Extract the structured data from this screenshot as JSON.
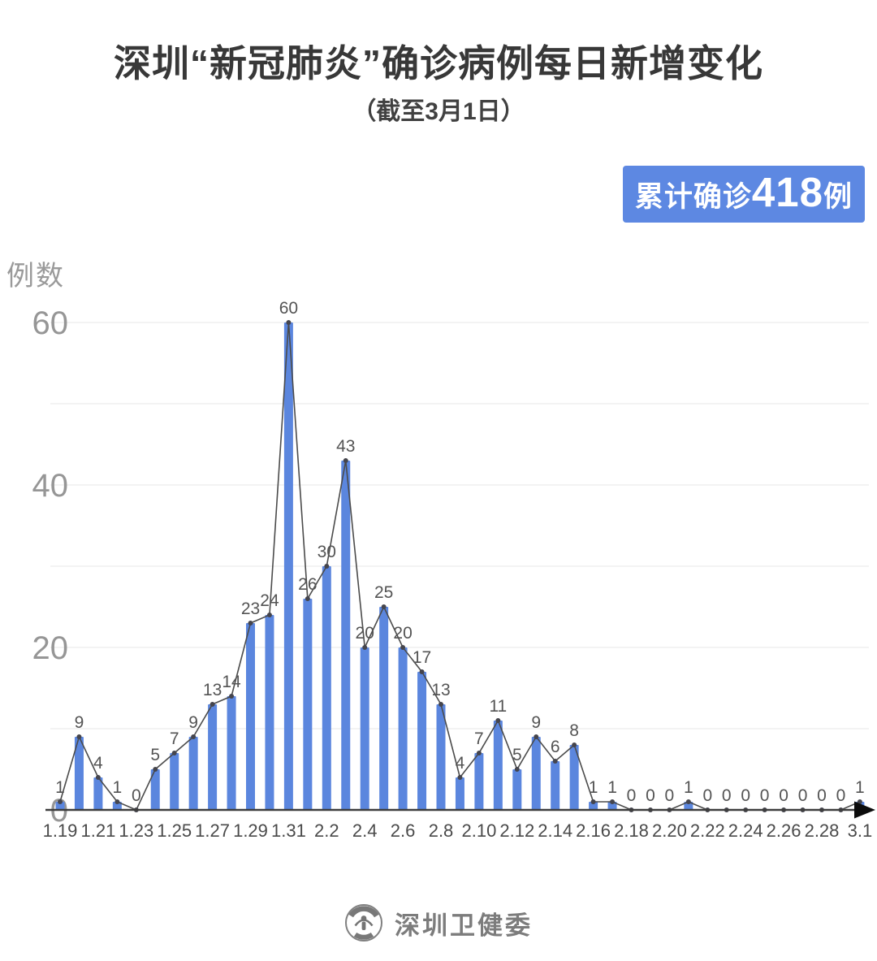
{
  "page": {
    "title": "深圳“新冠肺炎”确诊病例每日新增变化",
    "subtitle": "（截至3月1日）"
  },
  "badge": {
    "prefix": "累计确诊",
    "count": "418",
    "suffix": "例"
  },
  "footer": {
    "org_name": "深圳卫健委",
    "logo": "shenzhen-health-commission-seal-icon"
  },
  "colors": {
    "bar": "#5b86de",
    "badge_bg": "#5d88e2",
    "line": "#4b4b4b",
    "marker": "#45454d",
    "grid": "#ececec",
    "axis": "#3d3d3d",
    "value_label": "#545454",
    "x_tick_label": "#4a4a4a",
    "y_tick_label": "#969696"
  },
  "chart_data": {
    "type": "bar",
    "line_overlay": true,
    "title": "深圳“新冠肺炎”确诊病例每日新增变化",
    "subtitle": "（截至3月1日）",
    "ylabel": "例数",
    "ylim": [
      0,
      60
    ],
    "y_tick_labels": [
      0,
      20,
      40,
      60
    ],
    "gridline_interval": 10,
    "grid": true,
    "x_label_interval": 2,
    "categories": [
      "1.19",
      "1.20",
      "1.21",
      "1.22",
      "1.23",
      "1.24",
      "1.25",
      "1.26",
      "1.27",
      "1.28",
      "1.29",
      "1.30",
      "1.31",
      "2.1",
      "2.2",
      "2.3",
      "2.4",
      "2.5",
      "2.6",
      "2.7",
      "2.8",
      "2.9",
      "2.10",
      "2.11",
      "2.12",
      "2.13",
      "2.14",
      "2.15",
      "2.16",
      "2.17",
      "2.18",
      "2.19",
      "2.20",
      "2.21",
      "2.22",
      "2.23",
      "2.24",
      "2.25",
      "2.26",
      "2.27",
      "2.28",
      "2.29",
      "3.1"
    ],
    "values": [
      1,
      9,
      4,
      1,
      0,
      5,
      7,
      9,
      13,
      14,
      23,
      24,
      60,
      26,
      30,
      43,
      20,
      25,
      20,
      17,
      13,
      4,
      7,
      11,
      5,
      9,
      6,
      8,
      1,
      1,
      0,
      0,
      0,
      1,
      0,
      0,
      0,
      0,
      0,
      0,
      0,
      0,
      1
    ],
    "data_labels_shown": true,
    "cumulative_total": 418
  }
}
